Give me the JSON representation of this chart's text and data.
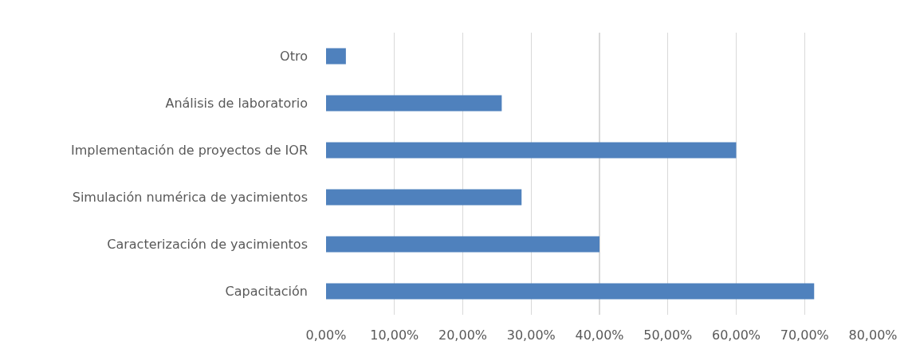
{
  "chart_data": {
    "type": "bar",
    "orientation": "horizontal",
    "categories": [
      "Otro",
      "Análisis de laboratorio",
      "Implementación de proyectos de IOR",
      "Simulación numérica de yacimientos",
      "Caracterización de yacimientos",
      "Capacitación"
    ],
    "values": [
      2.9,
      25.7,
      60,
      28.6,
      40,
      71.4
    ],
    "color": "#4f81bd",
    "xlim": [
      0,
      80
    ],
    "xticks": [
      {
        "value": 0,
        "label": "0,00%"
      },
      {
        "value": 10,
        "label": "10,00%"
      },
      {
        "value": 20,
        "label": "20,00%"
      },
      {
        "value": 30,
        "label": "30,00%"
      },
      {
        "value": 40,
        "label": "40,00%"
      },
      {
        "value": 50,
        "label": "50,00%"
      },
      {
        "value": 60,
        "label": "60,00%"
      },
      {
        "value": 70,
        "label": "70,00%"
      },
      {
        "value": 80,
        "label": "80,00%"
      }
    ],
    "grid": "x"
  }
}
